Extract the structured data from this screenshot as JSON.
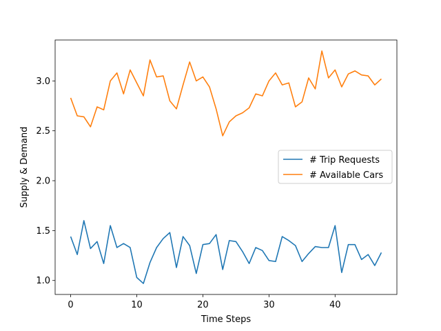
{
  "chart_data": {
    "type": "line",
    "title": "",
    "xlabel": "Time Steps",
    "ylabel": "Supply & Demand",
    "xlim": [
      -2.35,
      49.35
    ],
    "ylim": [
      0.86,
      3.41
    ],
    "xticks": [
      0,
      10,
      20,
      30,
      40
    ],
    "xtick_labels": [
      "0",
      "10",
      "20",
      "30",
      "40"
    ],
    "yticks": [
      1.0,
      1.5,
      2.0,
      2.5,
      3.0
    ],
    "ytick_labels": [
      "1.0",
      "1.5",
      "2.0",
      "2.5",
      "3.0"
    ],
    "grid": false,
    "legend_position": "center-right",
    "x": [
      0,
      1,
      2,
      3,
      4,
      5,
      6,
      7,
      8,
      9,
      10,
      11,
      12,
      13,
      14,
      15,
      16,
      17,
      18,
      19,
      20,
      21,
      22,
      23,
      24,
      25,
      26,
      27,
      28,
      29,
      30,
      31,
      32,
      33,
      34,
      35,
      36,
      37,
      38,
      39,
      40,
      41,
      42,
      43,
      44,
      45,
      46,
      47
    ],
    "series": [
      {
        "name": "# Trip Requests",
        "color": "#1f77b4",
        "values": [
          1.44,
          1.26,
          1.6,
          1.32,
          1.39,
          1.17,
          1.55,
          1.33,
          1.37,
          1.33,
          1.03,
          0.97,
          1.18,
          1.33,
          1.42,
          1.48,
          1.13,
          1.44,
          1.35,
          1.07,
          1.36,
          1.37,
          1.46,
          1.11,
          1.4,
          1.39,
          1.29,
          1.17,
          1.33,
          1.3,
          1.2,
          1.19,
          1.44,
          1.4,
          1.35,
          1.19,
          1.27,
          1.34,
          1.33,
          1.33,
          1.55,
          1.08,
          1.36,
          1.36,
          1.21,
          1.26,
          1.15,
          1.28
        ]
      },
      {
        "name": "# Available Cars",
        "color": "#ff7f0e",
        "values": [
          2.83,
          2.65,
          2.64,
          2.54,
          2.74,
          2.71,
          3.0,
          3.08,
          2.87,
          3.11,
          2.98,
          2.85,
          3.21,
          3.04,
          3.05,
          2.8,
          2.72,
          2.96,
          3.19,
          3.0,
          3.04,
          2.94,
          2.72,
          2.45,
          2.59,
          2.65,
          2.68,
          2.73,
          2.87,
          2.85,
          3.0,
          3.08,
          2.96,
          2.98,
          2.74,
          2.79,
          3.03,
          2.92,
          3.3,
          3.03,
          3.11,
          2.94,
          3.07,
          3.1,
          3.06,
          3.05,
          2.96,
          3.02
        ]
      }
    ]
  }
}
